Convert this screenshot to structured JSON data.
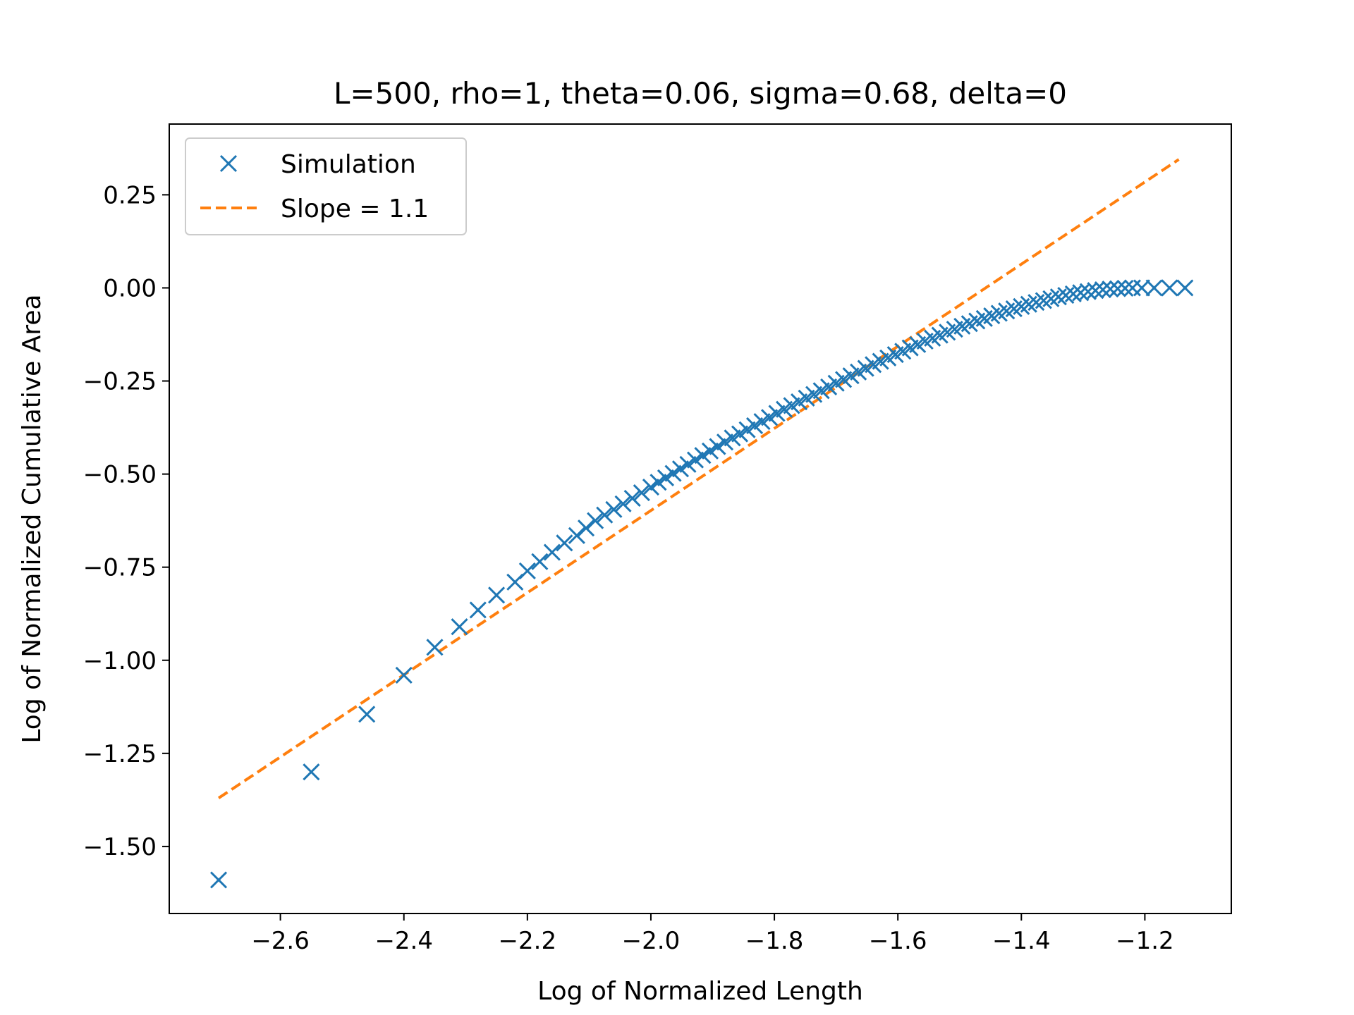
{
  "chart_data": {
    "type": "scatter",
    "title": "L=500, rho=1, theta=0.06, sigma=0.68, delta=0",
    "xlabel": "Log of Normalized Length",
    "ylabel": "Log of Normalized Cumulative Area",
    "xlim": [
      -2.78,
      -1.06
    ],
    "ylim": [
      -1.68,
      0.44
    ],
    "xticks": [
      -2.6,
      -2.4,
      -2.2,
      -2.0,
      -1.8,
      -1.6,
      -1.4,
      -1.2
    ],
    "xtick_labels": [
      "−2.6",
      "−2.4",
      "−2.2",
      "−2.0",
      "−1.8",
      "−1.6",
      "−1.4",
      "−1.2"
    ],
    "yticks": [
      -1.5,
      -1.25,
      -1.0,
      -0.75,
      -0.5,
      -0.25,
      0.0,
      0.25
    ],
    "ytick_labels": [
      "−1.50",
      "−1.25",
      "−1.00",
      "−0.75",
      "−0.50",
      "−0.25",
      "0.00",
      "0.25"
    ],
    "grid": false,
    "legend_position": "top-left",
    "series": [
      {
        "name": "Simulation",
        "marker": "x",
        "color": "#1f77b4",
        "points": [
          [
            -2.7,
            -1.59
          ],
          [
            -2.55,
            -1.3
          ],
          [
            -2.46,
            -1.145
          ],
          [
            -2.4,
            -1.04
          ],
          [
            -2.35,
            -0.965
          ],
          [
            -2.31,
            -0.91
          ],
          [
            -2.28,
            -0.865
          ],
          [
            -2.25,
            -0.825
          ],
          [
            -2.22,
            -0.79
          ],
          [
            -2.2,
            -0.76
          ],
          [
            -2.18,
            -0.735
          ],
          [
            -2.16,
            -0.71
          ],
          [
            -2.14,
            -0.685
          ],
          [
            -2.12,
            -0.665
          ],
          [
            -2.105,
            -0.645
          ],
          [
            -2.09,
            -0.625
          ],
          [
            -2.075,
            -0.61
          ],
          [
            -2.06,
            -0.595
          ],
          [
            -2.045,
            -0.58
          ],
          [
            -2.03,
            -0.565
          ],
          [
            -2.015,
            -0.55
          ],
          [
            -2.0,
            -0.535
          ],
          [
            -1.988,
            -0.522
          ],
          [
            -1.976,
            -0.51
          ],
          [
            -1.964,
            -0.498
          ],
          [
            -1.952,
            -0.486
          ],
          [
            -1.94,
            -0.474
          ],
          [
            -1.928,
            -0.462
          ],
          [
            -1.916,
            -0.45
          ],
          [
            -1.904,
            -0.438
          ],
          [
            -1.892,
            -0.426
          ],
          [
            -1.88,
            -0.414
          ],
          [
            -1.868,
            -0.403
          ],
          [
            -1.856,
            -0.392
          ],
          [
            -1.844,
            -0.381
          ],
          [
            -1.832,
            -0.37
          ],
          [
            -1.82,
            -0.359
          ],
          [
            -1.808,
            -0.348
          ],
          [
            -1.796,
            -0.337
          ],
          [
            -1.784,
            -0.326
          ],
          [
            -1.772,
            -0.316
          ],
          [
            -1.76,
            -0.306
          ],
          [
            -1.748,
            -0.296
          ],
          [
            -1.736,
            -0.286
          ],
          [
            -1.724,
            -0.276
          ],
          [
            -1.712,
            -0.266
          ],
          [
            -1.7,
            -0.256
          ],
          [
            -1.688,
            -0.246
          ],
          [
            -1.676,
            -0.236
          ],
          [
            -1.664,
            -0.226
          ],
          [
            -1.652,
            -0.216
          ],
          [
            -1.64,
            -0.206
          ],
          [
            -1.628,
            -0.197
          ],
          [
            -1.616,
            -0.188
          ],
          [
            -1.604,
            -0.179
          ],
          [
            -1.592,
            -0.17
          ],
          [
            -1.58,
            -0.161
          ],
          [
            -1.568,
            -0.152
          ],
          [
            -1.556,
            -0.143
          ],
          [
            -1.544,
            -0.135
          ],
          [
            -1.532,
            -0.127
          ],
          [
            -1.52,
            -0.119
          ],
          [
            -1.508,
            -0.111
          ],
          [
            -1.496,
            -0.103
          ],
          [
            -1.484,
            -0.096
          ],
          [
            -1.472,
            -0.089
          ],
          [
            -1.46,
            -0.082
          ],
          [
            -1.448,
            -0.075
          ],
          [
            -1.436,
            -0.068
          ],
          [
            -1.424,
            -0.062
          ],
          [
            -1.412,
            -0.056
          ],
          [
            -1.4,
            -0.05
          ],
          [
            -1.388,
            -0.044
          ],
          [
            -1.376,
            -0.039
          ],
          [
            -1.364,
            -0.034
          ],
          [
            -1.352,
            -0.029
          ],
          [
            -1.34,
            -0.024
          ],
          [
            -1.328,
            -0.02
          ],
          [
            -1.316,
            -0.016
          ],
          [
            -1.304,
            -0.013
          ],
          [
            -1.292,
            -0.01
          ],
          [
            -1.28,
            -0.007
          ],
          [
            -1.268,
            -0.005
          ],
          [
            -1.256,
            -0.003
          ],
          [
            -1.244,
            -0.002
          ],
          [
            -1.232,
            -0.001
          ],
          [
            -1.22,
            0.0
          ],
          [
            -1.205,
            0.0
          ],
          [
            -1.185,
            0.0
          ],
          [
            -1.16,
            0.0
          ],
          [
            -1.135,
            0.0
          ]
        ]
      },
      {
        "name": "Slope = 1.1",
        "line": "dashed",
        "color": "#ff7f0e",
        "points": [
          [
            -2.7,
            -1.37
          ],
          [
            -1.145,
            0.345
          ]
        ]
      }
    ]
  }
}
